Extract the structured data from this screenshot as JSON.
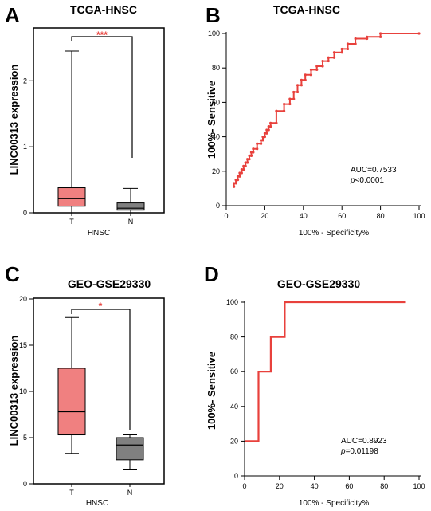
{
  "panels": {
    "A": {
      "letter": "A",
      "title": "TCGA-HNSC",
      "ylabel": "LINC00313 expression",
      "xlabel": "HNSC",
      "signif": "***"
    },
    "B": {
      "letter": "B",
      "title": "TCGA-HNSC",
      "ylabel": "100%- Sensitive",
      "xlabel": "100% - Specificity%",
      "auc": "AUC=0.7533",
      "p_prefix": "p",
      "p_rest": "<0.0001"
    },
    "C": {
      "letter": "C",
      "title": "GEO-GSE29330",
      "ylabel": "LINC00313 expression",
      "xlabel": "HNSC",
      "signif": "*"
    },
    "D": {
      "letter": "D",
      "title": "GEO-GSE29330",
      "ylabel": "100%- Sensitive",
      "xlabel": "100% - Specificity%",
      "auc": "AUC=0.8923",
      "p_prefix": "p",
      "p_rest": "=0.01198"
    }
  },
  "colors": {
    "tumor_box": "#f08080",
    "normal_box": "#808080",
    "roc_line": "#e8413c",
    "signif": "#e8413c"
  },
  "chart_data": [
    {
      "panel": "A",
      "type": "box",
      "title": "TCGA-HNSC",
      "ylabel": "LINC00313 expression",
      "xlabel": "HNSC",
      "ylim": [
        0,
        2.8
      ],
      "yticks": [
        0,
        1,
        2
      ],
      "categories": [
        "T",
        "N"
      ],
      "boxes": [
        {
          "name": "T",
          "min": 0,
          "q1": 0.1,
          "median": 0.22,
          "q3": 0.38,
          "max": 2.45
        },
        {
          "name": "N",
          "min": 0,
          "q1": 0.04,
          "median": 0.07,
          "q3": 0.15,
          "max": 0.37
        }
      ],
      "significance": "***"
    },
    {
      "panel": "B",
      "type": "line",
      "title": "TCGA-HNSC",
      "xlabel": "100% - Specificity%",
      "ylabel": "100%- Sensitive",
      "xlim": [
        0,
        100
      ],
      "ylim": [
        0,
        100
      ],
      "xticks": [
        0,
        20,
        40,
        60,
        80,
        100
      ],
      "yticks": [
        0,
        20,
        40,
        60,
        80,
        100
      ],
      "annotation": [
        "AUC=0.7533",
        "p<0.0001"
      ],
      "x": [
        4,
        4,
        5,
        5,
        6,
        6,
        7,
        7,
        8,
        8,
        9,
        9,
        10,
        10,
        11,
        11,
        12,
        12,
        13,
        13,
        14,
        14,
        16,
        16,
        18,
        18,
        19,
        19,
        20,
        20,
        21,
        21,
        22,
        22,
        23,
        23,
        26,
        26,
        30,
        30,
        33,
        33,
        35,
        35,
        37,
        37,
        39,
        39,
        41,
        41,
        44,
        44,
        47,
        47,
        50,
        50,
        53,
        53,
        56,
        56,
        60,
        60,
        63,
        63,
        67,
        67,
        73,
        73,
        80,
        80,
        100
      ],
      "y": [
        11,
        13,
        13,
        15,
        15,
        17,
        17,
        19,
        19,
        21,
        21,
        23,
        23,
        25,
        25,
        27,
        27,
        29,
        29,
        31,
        31,
        33,
        33,
        36,
        36,
        38,
        38,
        40,
        40,
        42,
        42,
        44,
        44,
        46,
        46,
        48,
        48,
        55,
        55,
        59,
        59,
        62,
        62,
        66,
        66,
        70,
        70,
        73,
        73,
        76,
        76,
        79,
        79,
        81,
        81,
        84,
        84,
        86,
        86,
        89,
        89,
        91,
        91,
        94,
        94,
        97,
        97,
        98,
        98,
        100,
        100
      ]
    },
    {
      "panel": "C",
      "type": "box",
      "title": "GEO-GSE29330",
      "ylabel": "LINC00313 expression",
      "xlabel": "HNSC",
      "ylim": [
        0,
        20
      ],
      "yticks": [
        0,
        5,
        10,
        15,
        20
      ],
      "categories": [
        "T",
        "N"
      ],
      "boxes": [
        {
          "name": "T",
          "min": 3.3,
          "q1": 5.3,
          "median": 7.8,
          "q3": 12.5,
          "max": 18.0
        },
        {
          "name": "N",
          "min": 1.6,
          "q1": 2.6,
          "median": 4.2,
          "q3": 5.0,
          "max": 5.3
        }
      ],
      "significance": "*"
    },
    {
      "panel": "D",
      "type": "line",
      "title": "GEO-GSE29330",
      "xlabel": "100% - Specificity%",
      "ylabel": "100%- Sensitive",
      "xlim": [
        0,
        100
      ],
      "ylim": [
        0,
        100
      ],
      "xticks": [
        0,
        20,
        40,
        60,
        80,
        100
      ],
      "yticks": [
        0,
        20,
        40,
        60,
        80,
        100
      ],
      "annotation": [
        "AUC=0.8923",
        "p=0.01198"
      ],
      "x": [
        0,
        8,
        8,
        15,
        15,
        23,
        23,
        92
      ],
      "y": [
        20,
        20,
        60,
        60,
        80,
        80,
        100,
        100
      ]
    }
  ]
}
